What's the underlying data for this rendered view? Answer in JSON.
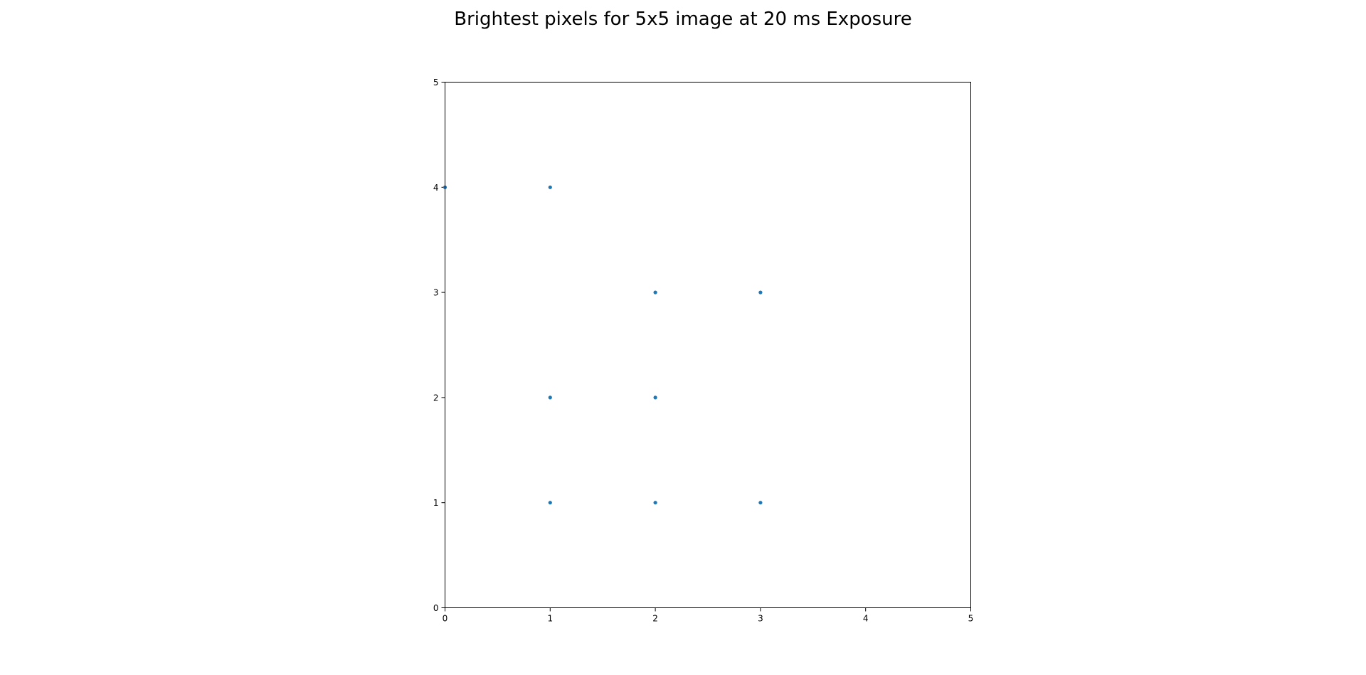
{
  "chart_data": {
    "type": "scatter",
    "title": "Brightest pixels for 5x5 image at 20 ms Exposure",
    "xlabel": "",
    "ylabel": "",
    "xlim": [
      0,
      5
    ],
    "ylim": [
      0,
      5
    ],
    "xticks": [
      "0",
      "1",
      "2",
      "3",
      "4",
      "5"
    ],
    "yticks": [
      "0",
      "1",
      "2",
      "3",
      "4",
      "5"
    ],
    "grid": false,
    "series": [
      {
        "color": "#1f77b4",
        "points": [
          {
            "x": 0,
            "y": 4
          },
          {
            "x": 1,
            "y": 4
          },
          {
            "x": 2,
            "y": 3
          },
          {
            "x": 3,
            "y": 3
          },
          {
            "x": 1,
            "y": 2
          },
          {
            "x": 2,
            "y": 2
          },
          {
            "x": 1,
            "y": 1
          },
          {
            "x": 2,
            "y": 1
          },
          {
            "x": 3,
            "y": 1
          }
        ]
      }
    ]
  }
}
